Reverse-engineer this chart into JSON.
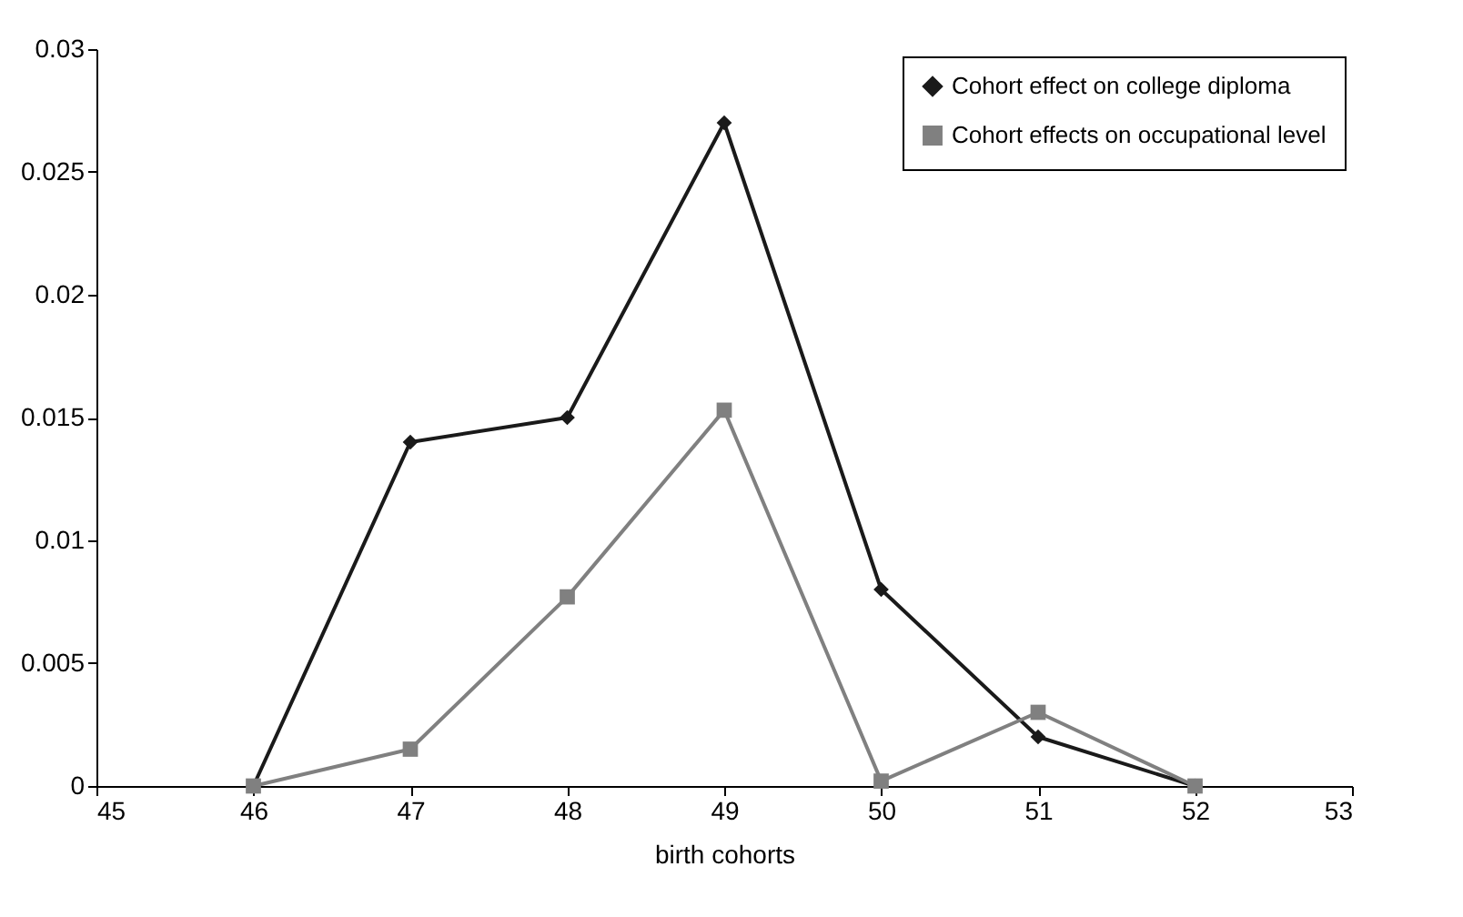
{
  "chart_data": {
    "type": "line",
    "xlabel": "birth cohorts",
    "x": [
      46,
      47,
      48,
      49,
      50,
      51,
      52
    ],
    "series": [
      {
        "name": "Cohort effect on college diploma",
        "color": "#1a1a1a",
        "marker": "diamond",
        "values": [
          0,
          0.014,
          0.015,
          0.027,
          0.008,
          0.002,
          0
        ]
      },
      {
        "name": "Cohort effects on occupational level",
        "color": "#808080",
        "marker": "square",
        "values": [
          0,
          0.0015,
          0.0077,
          0.0153,
          0.0002,
          0.003,
          0
        ]
      }
    ],
    "xlim": [
      45,
      53
    ],
    "xticks": [
      45,
      46,
      47,
      48,
      49,
      50,
      51,
      52,
      53
    ],
    "ylim": [
      0,
      0.03
    ],
    "yticks": [
      0,
      0.005,
      0.01,
      0.015,
      0.02,
      0.025,
      0.03
    ],
    "grid": false,
    "legend": "top right"
  }
}
